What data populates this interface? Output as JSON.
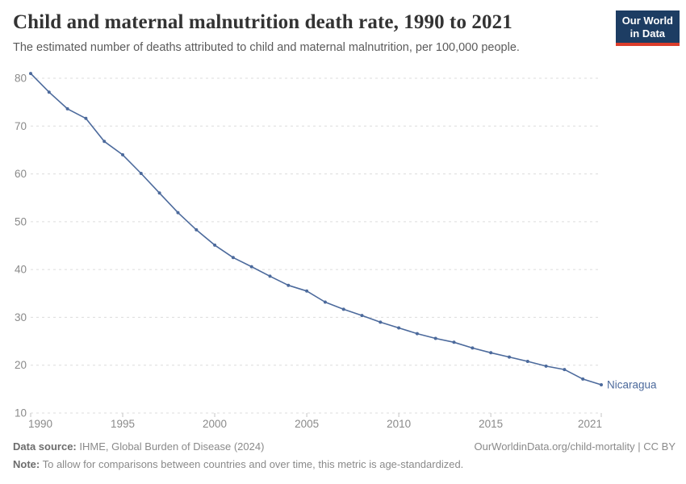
{
  "header": {
    "title": "Child and maternal malnutrition death rate, 1990 to 2021",
    "subtitle": "The estimated number of deaths attributed to child and maternal malnutrition, per 100,000 people.",
    "logo": {
      "line1": "Our World",
      "line2": "in Data"
    }
  },
  "chart_data": {
    "type": "line",
    "title": "Child and maternal malnutrition death rate, 1990 to 2021",
    "subtitle": "The estimated number of deaths attributed to child and maternal malnutrition, per 100,000 people.",
    "years": [
      1990,
      1991,
      1992,
      1993,
      1994,
      1995,
      1996,
      1997,
      1998,
      1999,
      2000,
      2001,
      2002,
      2003,
      2004,
      2005,
      2006,
      2007,
      2008,
      2009,
      2010,
      2011,
      2012,
      2013,
      2014,
      2015,
      2016,
      2017,
      2018,
      2019,
      2020,
      2021
    ],
    "series": [
      {
        "name": "Nicaragua",
        "color": "#4C6A9C",
        "values": [
          81,
          77.1,
          73.6,
          71.6,
          66.8,
          64,
          60.1,
          56,
          51.9,
          48.3,
          45.1,
          42.5,
          40.6,
          38.6,
          36.7,
          35.5,
          33.2,
          31.7,
          30.4,
          29,
          27.8,
          26.6,
          25.6,
          24.8,
          23.6,
          22.6,
          21.7,
          20.8,
          19.8,
          19.1,
          17.1,
          15.9
        ]
      }
    ],
    "x_ticks": [
      1990,
      1995,
      2000,
      2005,
      2010,
      2015,
      2021
    ],
    "y_ticks": [
      10,
      20,
      30,
      40,
      50,
      60,
      70,
      80
    ],
    "xlim": [
      1990,
      2021
    ],
    "ylim": [
      10,
      81
    ],
    "grid": "horizontal-dashed",
    "legend_position": "end-of-line-label",
    "xlabel": "",
    "ylabel": ""
  },
  "colors": {
    "line": "#4C6A9C",
    "grid": "#dcdcdc",
    "tick_mark": "#c4c4c4",
    "axis_text": "#8a8a8a",
    "logo_bg": "#1d3d63",
    "logo_accent": "#dc3d2b"
  },
  "footer": {
    "data_source_label": "Data source:",
    "data_source_text": " IHME, Global Burden of Disease (2024)",
    "note_label": "Note:",
    "note_text": " To allow for comparisons between countries and over time, this metric is age-standardized.",
    "link": "OurWorldinData.org/child-mortality | CC BY"
  }
}
